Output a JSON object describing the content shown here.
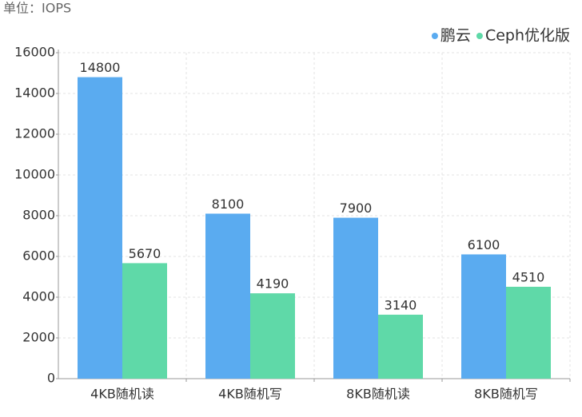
{
  "chart_data": {
    "type": "bar",
    "subtitle": "单位：IOPS",
    "categories": [
      "4KB随机读",
      "4KB随机写",
      "8KB随机读",
      "8KB随机写"
    ],
    "series": [
      {
        "name": "鹏云",
        "color": "#5aabf0",
        "values": [
          14800,
          8100,
          7900,
          6100
        ]
      },
      {
        "name": "Ceph优化版",
        "color": "#5fd9a8",
        "values": [
          5670,
          4190,
          3140,
          4510
        ]
      }
    ],
    "ylim": [
      0,
      16000
    ],
    "yticks": [
      0,
      2000,
      4000,
      6000,
      8000,
      10000,
      12000,
      14000,
      16000
    ],
    "grid": true,
    "legend": "top-right"
  }
}
